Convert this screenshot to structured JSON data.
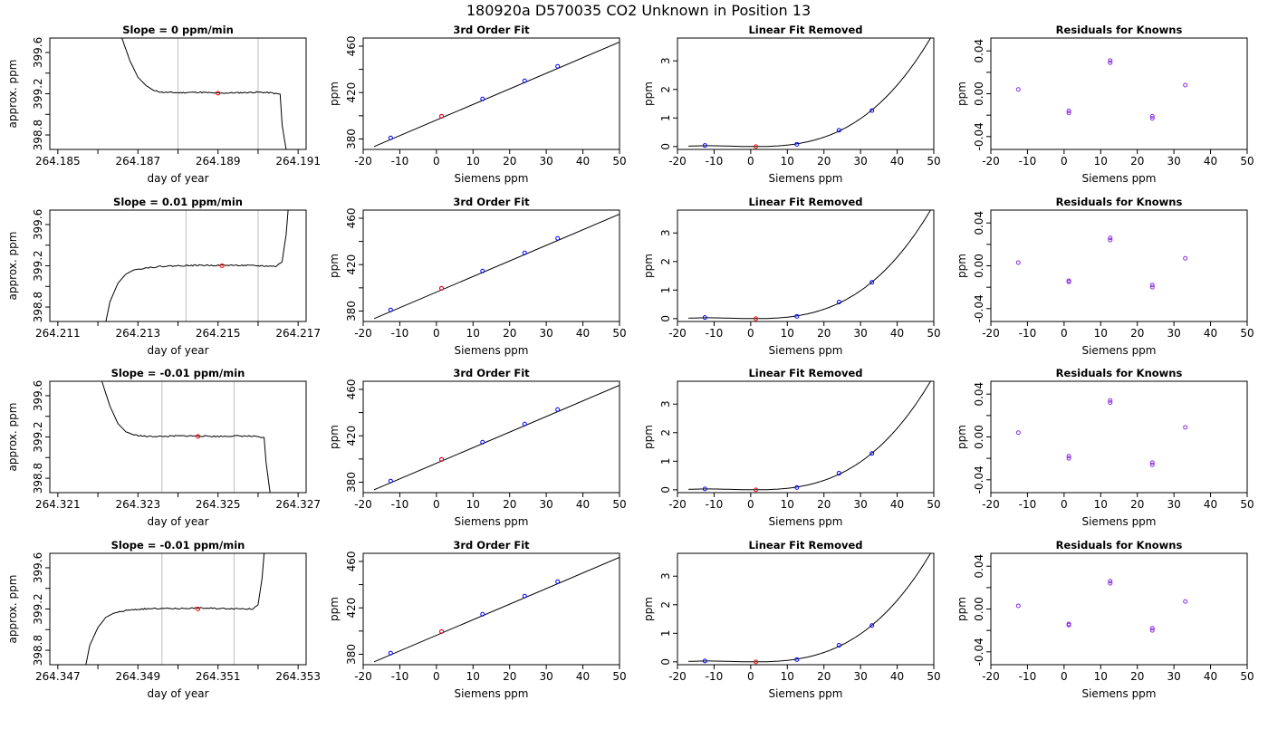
{
  "page_title": "180920a      D570035    CO2 Unknown in Position  13",
  "colors": {
    "known": "#0000ff",
    "unknown": "#ff0000",
    "residual": "#8a2be2",
    "guide": "#bebebe",
    "ink": "#000000"
  },
  "chart_data": [
    {
      "type": "line",
      "title": "Slope =  0  ppm/min",
      "xlabel": "day of year",
      "ylabel": "approx. ppm",
      "xlim": [
        264.1848,
        264.1912
      ],
      "ylim": [
        398.66,
        399.74
      ],
      "xticks": [
        264.185,
        264.186,
        264.187,
        264.188,
        264.189,
        264.19,
        264.191
      ],
      "xtick_labels": [
        "264.185",
        "",
        "264.187",
        "",
        "264.189",
        "",
        "264.191"
      ],
      "yticks": [
        398.8,
        399.0,
        399.2,
        399.4,
        399.6
      ],
      "ytick_labels": [
        "398.8",
        "",
        "399.2",
        "",
        "399.6"
      ],
      "guides": [
        264.188,
        264.19
      ],
      "trace": [
        [
          264.1866,
          399.74
        ],
        [
          264.1868,
          399.52
        ],
        [
          264.187,
          399.36
        ],
        [
          264.1872,
          399.28
        ],
        [
          264.1874,
          399.23
        ],
        [
          264.1876,
          399.215
        ],
        [
          264.188,
          399.21
        ],
        [
          264.1885,
          399.215
        ],
        [
          264.189,
          399.205
        ],
        [
          264.1895,
          399.21
        ],
        [
          264.19,
          399.215
        ],
        [
          264.1903,
          399.21
        ],
        [
          264.19055,
          399.195
        ],
        [
          264.1906,
          398.9
        ],
        [
          264.1907,
          398.66
        ]
      ],
      "noise": 0.006,
      "seed": 11,
      "unknown_point": [
        264.189,
        399.205
      ]
    },
    {
      "type": "scatter",
      "title": "3rd Order Fit",
      "xlabel": "Siemens ppm",
      "ylabel": "ppm",
      "xlim": [
        -20,
        50
      ],
      "ylim": [
        371,
        467
      ],
      "xticks": [
        -20,
        -10,
        0,
        10,
        20,
        30,
        40,
        50
      ],
      "xtick_labels": [
        "-20",
        "-10",
        "0",
        "10",
        "20",
        "30",
        "40",
        "50"
      ],
      "yticks": [
        380,
        400,
        420,
        440,
        460
      ],
      "ytick_labels": [
        "380",
        "",
        "420",
        "",
        "460"
      ],
      "curve": {
        "x": [
          -17,
          50
        ],
        "y": [
          373.5,
          463.5
        ]
      },
      "known_x": [
        -12.5,
        1.4,
        12.6,
        24.1,
        33.1
      ],
      "known_y": [
        381.0,
        399.6,
        414.5,
        430.1,
        442.6
      ],
      "unknown_point": [
        1.4,
        399.6
      ]
    },
    {
      "type": "line",
      "title": "Linear Fit Removed",
      "xlabel": "Siemens ppm",
      "ylabel": "ppm",
      "xlim": [
        -20,
        50
      ],
      "ylim": [
        -0.1,
        3.8
      ],
      "xticks": [
        -20,
        -10,
        0,
        10,
        20,
        30,
        40,
        50
      ],
      "xtick_labels": [
        "-20",
        "-10",
        "0",
        "10",
        "20",
        "30",
        "40",
        "50"
      ],
      "yticks": [
        0,
        1,
        2,
        3
      ],
      "ytick_labels": [
        "0",
        "1",
        "2",
        "3"
      ],
      "cubic": {
        "x0": 1.4,
        "a": 2.467e-05,
        "b": 0.000492,
        "c": 0.00173
      },
      "curve_x": [
        -17,
        50
      ],
      "known_x": [
        -12.5,
        12.6,
        24.1,
        33.1
      ],
      "known_y": [
        0.04,
        0.08,
        0.57,
        1.26
      ],
      "unknown_point": [
        1.4,
        0.0
      ]
    },
    {
      "type": "scatter",
      "title": "Residuals for Knowns",
      "xlabel": "Siemens ppm",
      "ylabel": "ppm",
      "xlim": [
        -20,
        50
      ],
      "ylim": [
        -0.052,
        0.052
      ],
      "xticks": [
        -20,
        -10,
        0,
        10,
        20,
        30,
        40,
        50
      ],
      "xtick_labels": [
        "-20",
        "-10",
        "0",
        "10",
        "20",
        "30",
        "40",
        "50"
      ],
      "yticks": [
        -0.04,
        -0.02,
        0,
        0.02,
        0.04
      ],
      "ytick_labels": [
        "-0.04",
        "",
        "0.00",
        "",
        "0.04"
      ],
      "x": [
        -12.5,
        1.3,
        1.3,
        12.6,
        12.6,
        24.1,
        24.1,
        33.1
      ],
      "y": [
        0.004,
        -0.016,
        -0.018,
        0.031,
        0.029,
        -0.021,
        -0.023,
        0.008
      ]
    },
    {
      "type": "line",
      "title": "Slope =  0.01  ppm/min",
      "xlabel": "day of year",
      "ylabel": "approx. ppm",
      "xlim": [
        264.2108,
        264.2172
      ],
      "ylim": [
        398.66,
        399.74
      ],
      "xticks": [
        264.211,
        264.212,
        264.213,
        264.214,
        264.215,
        264.216,
        264.217
      ],
      "xtick_labels": [
        "264.211",
        "",
        "264.213",
        "",
        "264.215",
        "",
        "264.217"
      ],
      "yticks": [
        398.8,
        399.0,
        399.2,
        399.4,
        399.6
      ],
      "ytick_labels": [
        "398.8",
        "",
        "399.2",
        "",
        "399.6"
      ],
      "guides": [
        264.2142,
        264.216
      ],
      "trace": [
        [
          264.2122,
          398.66
        ],
        [
          264.2123,
          398.85
        ],
        [
          264.2125,
          399.03
        ],
        [
          264.2127,
          399.12
        ],
        [
          264.2129,
          399.16
        ],
        [
          264.2132,
          399.18
        ],
        [
          264.2136,
          399.195
        ],
        [
          264.214,
          399.2
        ],
        [
          264.2145,
          399.205
        ],
        [
          264.215,
          399.205
        ],
        [
          264.2155,
          399.205
        ],
        [
          264.216,
          399.2
        ],
        [
          264.21645,
          399.195
        ],
        [
          264.2166,
          399.24
        ],
        [
          264.2167,
          399.5
        ],
        [
          264.21675,
          399.74
        ]
      ],
      "noise": 0.006,
      "seed": 22,
      "unknown_point": [
        264.2151,
        399.2
      ]
    },
    {
      "type": "scatter",
      "title": "3rd Order Fit",
      "xlabel": "Siemens ppm",
      "ylabel": "ppm",
      "xlim": [
        -20,
        50
      ],
      "ylim": [
        371,
        467
      ],
      "xticks": [
        -20,
        -10,
        0,
        10,
        20,
        30,
        40,
        50
      ],
      "xtick_labels": [
        "-20",
        "-10",
        "0",
        "10",
        "20",
        "30",
        "40",
        "50"
      ],
      "yticks": [
        380,
        400,
        420,
        440,
        460
      ],
      "ytick_labels": [
        "380",
        "",
        "420",
        "",
        "460"
      ],
      "curve": {
        "x": [
          -17,
          50
        ],
        "y": [
          373.5,
          463.5
        ]
      },
      "known_x": [
        -12.5,
        1.4,
        12.6,
        24.1,
        33.1
      ],
      "known_y": [
        381.0,
        399.6,
        414.5,
        430.1,
        442.6
      ],
      "unknown_point": [
        1.4,
        399.6
      ]
    },
    {
      "type": "line",
      "title": "Linear Fit Removed",
      "xlabel": "Siemens ppm",
      "ylabel": "ppm",
      "xlim": [
        -20,
        50
      ],
      "ylim": [
        -0.1,
        3.8
      ],
      "xticks": [
        -20,
        -10,
        0,
        10,
        20,
        30,
        40,
        50
      ],
      "xtick_labels": [
        "-20",
        "-10",
        "0",
        "10",
        "20",
        "30",
        "40",
        "50"
      ],
      "yticks": [
        0,
        1,
        2,
        3
      ],
      "ytick_labels": [
        "0",
        "1",
        "2",
        "3"
      ],
      "cubic": {
        "x0": 1.4,
        "a": 2.467e-05,
        "b": 0.000492,
        "c": 0.00173
      },
      "curve_x": [
        -17,
        50
      ],
      "known_x": [
        -12.5,
        12.6,
        24.1,
        33.1
      ],
      "known_y": [
        0.04,
        0.08,
        0.58,
        1.27
      ],
      "unknown_point": [
        1.4,
        0.0
      ]
    },
    {
      "type": "scatter",
      "title": "Residuals for Knowns",
      "xlabel": "Siemens ppm",
      "ylabel": "ppm",
      "xlim": [
        -20,
        50
      ],
      "ylim": [
        -0.052,
        0.052
      ],
      "xticks": [
        -20,
        -10,
        0,
        10,
        20,
        30,
        40,
        50
      ],
      "xtick_labels": [
        "-20",
        "-10",
        "0",
        "10",
        "20",
        "30",
        "40",
        "50"
      ],
      "yticks": [
        -0.04,
        -0.02,
        0,
        0.02,
        0.04
      ],
      "ytick_labels": [
        "-0.04",
        "",
        "0.00",
        "",
        "0.04"
      ],
      "x": [
        -12.5,
        1.3,
        1.3,
        12.6,
        12.6,
        24.1,
        24.1,
        33.1
      ],
      "y": [
        0.003,
        -0.014,
        -0.015,
        0.026,
        0.024,
        -0.018,
        -0.02,
        0.007
      ]
    },
    {
      "type": "line",
      "title": "Slope =  -0.01  ppm/min",
      "xlabel": "day of year",
      "ylabel": "approx. ppm",
      "xlim": [
        264.3208,
        264.3272
      ],
      "ylim": [
        398.66,
        399.74
      ],
      "xticks": [
        264.321,
        264.322,
        264.323,
        264.324,
        264.325,
        264.326,
        264.327
      ],
      "xtick_labels": [
        "264.321",
        "",
        "264.323",
        "",
        "264.325",
        "",
        "264.327"
      ],
      "yticks": [
        398.8,
        399.0,
        399.2,
        399.4,
        399.6
      ],
      "ytick_labels": [
        "398.8",
        "",
        "399.2",
        "",
        "399.6"
      ],
      "guides": [
        264.3236,
        264.3254
      ],
      "trace": [
        [
          264.3221,
          399.74
        ],
        [
          264.3223,
          399.5
        ],
        [
          264.3225,
          399.33
        ],
        [
          264.3227,
          399.25
        ],
        [
          264.3229,
          399.22
        ],
        [
          264.3232,
          399.205
        ],
        [
          264.3236,
          399.205
        ],
        [
          264.324,
          399.21
        ],
        [
          264.3245,
          399.21
        ],
        [
          264.325,
          399.205
        ],
        [
          264.3255,
          399.21
        ],
        [
          264.3259,
          399.205
        ],
        [
          264.32615,
          399.19
        ],
        [
          264.3262,
          398.95
        ],
        [
          264.3263,
          398.66
        ]
      ],
      "noise": 0.006,
      "seed": 33,
      "unknown_point": [
        264.3245,
        399.205
      ]
    },
    {
      "type": "scatter",
      "title": "3rd Order Fit",
      "xlabel": "Siemens ppm",
      "ylabel": "ppm",
      "xlim": [
        -20,
        50
      ],
      "ylim": [
        371,
        467
      ],
      "xticks": [
        -20,
        -10,
        0,
        10,
        20,
        30,
        40,
        50
      ],
      "xtick_labels": [
        "-20",
        "-10",
        "0",
        "10",
        "20",
        "30",
        "40",
        "50"
      ],
      "yticks": [
        380,
        400,
        420,
        440,
        460
      ],
      "ytick_labels": [
        "380",
        "",
        "420",
        "",
        "460"
      ],
      "curve": {
        "x": [
          -17,
          50
        ],
        "y": [
          373.5,
          463.5
        ]
      },
      "known_x": [
        -12.5,
        1.4,
        12.6,
        24.1,
        33.1
      ],
      "known_y": [
        381.0,
        399.6,
        414.5,
        430.1,
        442.6
      ],
      "unknown_point": [
        1.4,
        399.6
      ]
    },
    {
      "type": "line",
      "title": "Linear Fit Removed",
      "xlabel": "Siemens ppm",
      "ylabel": "ppm",
      "xlim": [
        -20,
        50
      ],
      "ylim": [
        -0.1,
        3.8
      ],
      "xticks": [
        -20,
        -10,
        0,
        10,
        20,
        30,
        40,
        50
      ],
      "xtick_labels": [
        "-20",
        "-10",
        "0",
        "10",
        "20",
        "30",
        "40",
        "50"
      ],
      "yticks": [
        0,
        1,
        2,
        3
      ],
      "ytick_labels": [
        "0",
        "1",
        "2",
        "3"
      ],
      "cubic": {
        "x0": 1.4,
        "a": 2.467e-05,
        "b": 0.000492,
        "c": 0.00173
      },
      "curve_x": [
        -17,
        50
      ],
      "known_x": [
        -12.5,
        12.6,
        24.1,
        33.1
      ],
      "known_y": [
        0.03,
        0.08,
        0.58,
        1.27
      ],
      "unknown_point": [
        1.4,
        0.0
      ]
    },
    {
      "type": "scatter",
      "title": "Residuals for Knowns",
      "xlabel": "Siemens ppm",
      "ylabel": "ppm",
      "xlim": [
        -20,
        50
      ],
      "ylim": [
        -0.052,
        0.052
      ],
      "xticks": [
        -20,
        -10,
        0,
        10,
        20,
        30,
        40,
        50
      ],
      "xtick_labels": [
        "-20",
        "-10",
        "0",
        "10",
        "20",
        "30",
        "40",
        "50"
      ],
      "yticks": [
        -0.04,
        -0.02,
        0,
        0.02,
        0.04
      ],
      "ytick_labels": [
        "-0.04",
        "",
        "0.00",
        "",
        "0.04"
      ],
      "x": [
        -12.5,
        1.3,
        1.3,
        12.6,
        12.6,
        24.1,
        24.1,
        33.1
      ],
      "y": [
        0.004,
        -0.018,
        -0.02,
        0.034,
        0.032,
        -0.024,
        -0.026,
        0.009
      ]
    },
    {
      "type": "line",
      "title": "Slope =  -0.01  ppm/min",
      "xlabel": "day of year",
      "ylabel": "approx. ppm",
      "xlim": [
        264.3468,
        264.3532
      ],
      "ylim": [
        398.66,
        399.74
      ],
      "xticks": [
        264.347,
        264.348,
        264.349,
        264.35,
        264.351,
        264.352,
        264.353
      ],
      "xtick_labels": [
        "264.347",
        "",
        "264.349",
        "",
        "264.351",
        "",
        "264.353"
      ],
      "yticks": [
        398.8,
        399.0,
        399.2,
        399.4,
        399.6
      ],
      "ytick_labels": [
        "398.8",
        "",
        "399.2",
        "",
        "399.6"
      ],
      "guides": [
        264.3496,
        264.3514
      ],
      "trace": [
        [
          264.3477,
          398.66
        ],
        [
          264.3478,
          398.85
        ],
        [
          264.348,
          399.02
        ],
        [
          264.3482,
          399.12
        ],
        [
          264.3484,
          399.16
        ],
        [
          264.3487,
          399.185
        ],
        [
          264.3491,
          399.2
        ],
        [
          264.3495,
          399.205
        ],
        [
          264.35,
          399.205
        ],
        [
          264.3505,
          399.21
        ],
        [
          264.351,
          399.205
        ],
        [
          264.3515,
          399.205
        ],
        [
          264.35185,
          399.2
        ],
        [
          264.352,
          399.24
        ],
        [
          264.3521,
          399.5
        ],
        [
          264.35215,
          399.74
        ]
      ],
      "noise": 0.006,
      "seed": 44,
      "unknown_point": [
        264.3505,
        399.2
      ]
    },
    {
      "type": "scatter",
      "title": "3rd Order Fit",
      "xlabel": "Siemens ppm",
      "ylabel": "ppm",
      "xlim": [
        -20,
        50
      ],
      "ylim": [
        371,
        467
      ],
      "xticks": [
        -20,
        -10,
        0,
        10,
        20,
        30,
        40,
        50
      ],
      "xtick_labels": [
        "-20",
        "-10",
        "0",
        "10",
        "20",
        "30",
        "40",
        "50"
      ],
      "yticks": [
        380,
        400,
        420,
        440,
        460
      ],
      "ytick_labels": [
        "380",
        "",
        "420",
        "",
        "460"
      ],
      "curve": {
        "x": [
          -17,
          50
        ],
        "y": [
          373.5,
          463.5
        ]
      },
      "known_x": [
        -12.5,
        1.4,
        12.6,
        24.1,
        33.1
      ],
      "known_y": [
        381.0,
        399.6,
        414.5,
        430.1,
        442.6
      ],
      "unknown_point": [
        1.4,
        399.6
      ]
    },
    {
      "type": "line",
      "title": "Linear Fit Removed",
      "xlabel": "Siemens ppm",
      "ylabel": "ppm",
      "xlim": [
        -20,
        50
      ],
      "ylim": [
        -0.1,
        3.8
      ],
      "xticks": [
        -20,
        -10,
        0,
        10,
        20,
        30,
        40,
        50
      ],
      "xtick_labels": [
        "-20",
        "-10",
        "0",
        "10",
        "20",
        "30",
        "40",
        "50"
      ],
      "yticks": [
        0,
        1,
        2,
        3
      ],
      "ytick_labels": [
        "0",
        "1",
        "2",
        "3"
      ],
      "cubic": {
        "x0": 1.4,
        "a": 2.467e-05,
        "b": 0.000492,
        "c": 0.00173
      },
      "curve_x": [
        -17,
        50
      ],
      "known_x": [
        -12.5,
        12.6,
        24.1,
        33.1
      ],
      "known_y": [
        0.03,
        0.08,
        0.58,
        1.27
      ],
      "unknown_point": [
        1.4,
        0.0
      ]
    },
    {
      "type": "scatter",
      "title": "Residuals for Knowns",
      "xlabel": "Siemens ppm",
      "ylabel": "ppm",
      "xlim": [
        -20,
        50
      ],
      "ylim": [
        -0.052,
        0.052
      ],
      "xticks": [
        -20,
        -10,
        0,
        10,
        20,
        30,
        40,
        50
      ],
      "xtick_labels": [
        "-20",
        "-10",
        "0",
        "10",
        "20",
        "30",
        "40",
        "50"
      ],
      "yticks": [
        -0.04,
        -0.02,
        0,
        0.02,
        0.04
      ],
      "ytick_labels": [
        "-0.04",
        "",
        "0.00",
        "",
        "0.04"
      ],
      "x": [
        -12.5,
        1.3,
        1.3,
        12.6,
        12.6,
        24.1,
        24.1,
        33.1
      ],
      "y": [
        0.003,
        -0.014,
        -0.015,
        0.026,
        0.024,
        -0.018,
        -0.02,
        0.007
      ]
    }
  ]
}
